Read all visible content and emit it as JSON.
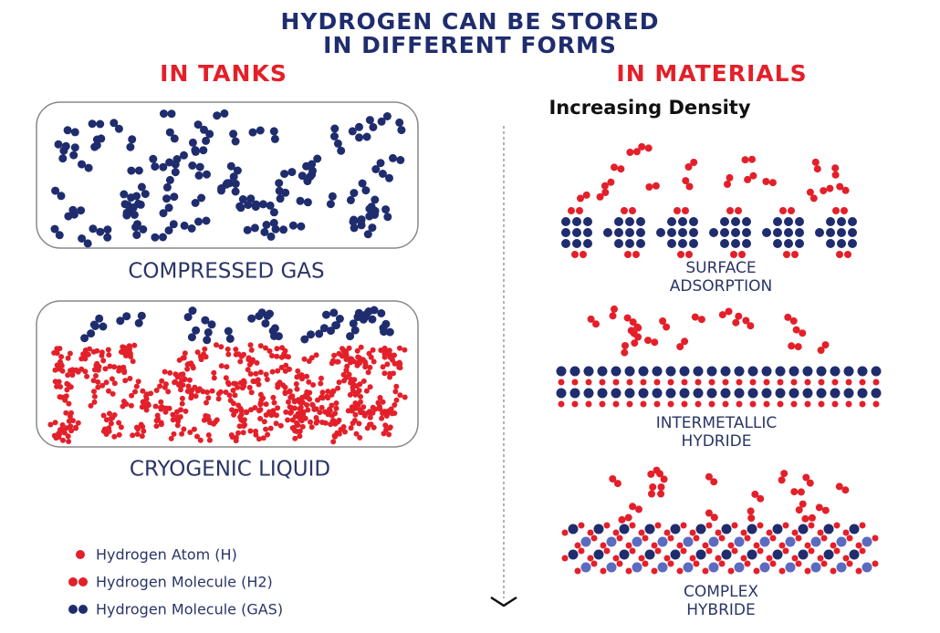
{
  "title": [
    "HYDROGEN CAN BE STORED",
    "IN DIFFERENT FORMS"
  ],
  "tanks": {
    "heading": "IN TANKS",
    "items": [
      {
        "label": "COMPRESSED GAS"
      },
      {
        "label": "CRYOGENIC LIQUID"
      }
    ]
  },
  "materials": {
    "heading": "IN MATERIALS",
    "axis_label": "Increasing Density",
    "items": [
      {
        "label": [
          "SURFACE",
          "ADSORPTION"
        ]
      },
      {
        "label": [
          "INTERMETALLIC",
          "HYDRIDE"
        ]
      },
      {
        "label": [
          "COMPLEX",
          "HYBRIDE"
        ]
      }
    ]
  },
  "legend": [
    "Hydrogen Atom (H)",
    "Hydrogen Molecule (H2)",
    "Hydrogen Molecule (GAS)"
  ]
}
